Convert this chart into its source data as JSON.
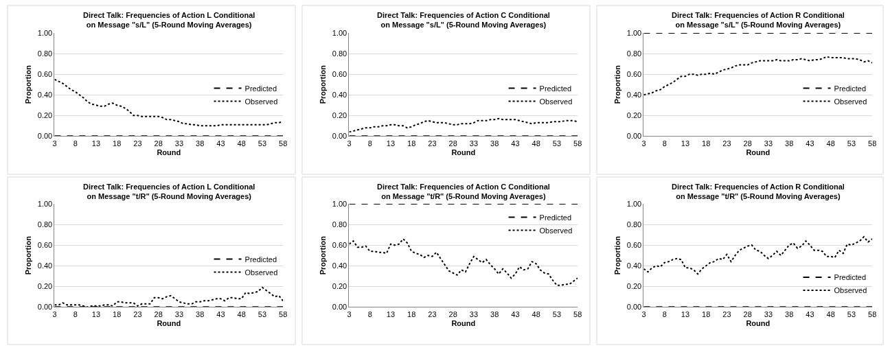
{
  "chart_data": [
    {
      "type": "line",
      "title": "Direct Talk: Frequencies of Action L Conditional on Message \"s/L\" (5-Round Moving Averages)",
      "xlabel": "Round",
      "ylabel": "Proportion",
      "x": [
        3,
        4,
        5,
        6,
        7,
        8,
        9,
        10,
        11,
        12,
        13,
        14,
        15,
        16,
        17,
        18,
        19,
        20,
        21,
        22,
        23,
        24,
        25,
        26,
        27,
        28,
        29,
        30,
        31,
        32,
        33,
        34,
        35,
        36,
        37,
        38,
        39,
        40,
        41,
        42,
        43,
        44,
        45,
        46,
        47,
        48,
        49,
        50,
        51,
        52,
        53,
        54,
        55,
        56,
        57,
        58
      ],
      "xlim": [
        3,
        58
      ],
      "xticks": [
        3,
        8,
        13,
        18,
        23,
        28,
        33,
        38,
        43,
        48,
        53,
        58
      ],
      "ylim": [
        0,
        1
      ],
      "yticks": [
        {
          "value": 0,
          "label": "0.00"
        },
        {
          "value": 0.2,
          "label": "0.20"
        },
        {
          "value": 0.4,
          "label": "0.40"
        },
        {
          "value": 0.6,
          "label": "0.60"
        },
        {
          "value": 0.8,
          "label": "0.80"
        },
        {
          "value": 1,
          "label": "1.00"
        }
      ],
      "grid": "y",
      "legend": "right",
      "marker": "none",
      "series": [
        {
          "name": "Predicted",
          "color": "#000000",
          "line_style": "dashed",
          "values": [
            0,
            0,
            0,
            0,
            0,
            0,
            0,
            0,
            0,
            0,
            0,
            0,
            0,
            0,
            0,
            0,
            0,
            0,
            0,
            0,
            0,
            0,
            0,
            0,
            0,
            0,
            0,
            0,
            0,
            0,
            0,
            0,
            0,
            0,
            0,
            0,
            0,
            0,
            0,
            0,
            0,
            0,
            0,
            0,
            0,
            0,
            0,
            0,
            0,
            0,
            0,
            0,
            0,
            0,
            0,
            0
          ]
        },
        {
          "name": "Observed",
          "color": "#000000",
          "line_style": "dotted",
          "values": [
            0.55,
            0.53,
            0.51,
            0.48,
            0.45,
            0.43,
            0.4,
            0.37,
            0.33,
            0.31,
            0.3,
            0.29,
            0.29,
            0.31,
            0.32,
            0.3,
            0.29,
            0.27,
            0.24,
            0.2,
            0.2,
            0.19,
            0.19,
            0.19,
            0.19,
            0.19,
            0.18,
            0.16,
            0.16,
            0.15,
            0.14,
            0.12,
            0.12,
            0.11,
            0.11,
            0.1,
            0.1,
            0.1,
            0.1,
            0.1,
            0.11,
            0.11,
            0.11,
            0.11,
            0.11,
            0.11,
            0.11,
            0.11,
            0.11,
            0.11,
            0.11,
            0.11,
            0.12,
            0.13,
            0.13,
            0.14
          ]
        }
      ]
    },
    {
      "type": "line",
      "title": "Direct Talk: Frequencies of Action C Conditional on Message \"s/L\" (5-Round Moving Averages)",
      "xlabel": "Round",
      "ylabel": "Proportion",
      "x": [
        3,
        4,
        5,
        6,
        7,
        8,
        9,
        10,
        11,
        12,
        13,
        14,
        15,
        16,
        17,
        18,
        19,
        20,
        21,
        22,
        23,
        24,
        25,
        26,
        27,
        28,
        29,
        30,
        31,
        32,
        33,
        34,
        35,
        36,
        37,
        38,
        39,
        40,
        41,
        42,
        43,
        44,
        45,
        46,
        47,
        48,
        49,
        50,
        51,
        52,
        53,
        54,
        55,
        56,
        57,
        58
      ],
      "xlim": [
        3,
        58
      ],
      "xticks": [
        3,
        8,
        13,
        18,
        23,
        28,
        33,
        38,
        43,
        48,
        53,
        58
      ],
      "ylim": [
        0,
        1
      ],
      "yticks": [
        {
          "value": 0,
          "label": "0.00"
        },
        {
          "value": 0.2,
          "label": "0.20"
        },
        {
          "value": 0.4,
          "label": "0.40"
        },
        {
          "value": 0.6,
          "label": "0.60"
        },
        {
          "value": 0.8,
          "label": "0.80"
        },
        {
          "value": 1,
          "label": "1.00"
        }
      ],
      "grid": "y",
      "legend": "right",
      "marker": "none",
      "series": [
        {
          "name": "Predicted",
          "color": "#000000",
          "line_style": "dashed",
          "values": [
            0,
            0,
            0,
            0,
            0,
            0,
            0,
            0,
            0,
            0,
            0,
            0,
            0,
            0,
            0,
            0,
            0,
            0,
            0,
            0,
            0,
            0,
            0,
            0,
            0,
            0,
            0,
            0,
            0,
            0,
            0,
            0,
            0,
            0,
            0,
            0,
            0,
            0,
            0,
            0,
            0,
            0,
            0,
            0,
            0,
            0,
            0,
            0,
            0,
            0,
            0,
            0,
            0,
            0,
            0,
            0
          ]
        },
        {
          "name": "Observed",
          "color": "#000000",
          "line_style": "dotted",
          "values": [
            0.04,
            0.05,
            0.06,
            0.07,
            0.08,
            0.08,
            0.09,
            0.09,
            0.1,
            0.1,
            0.11,
            0.11,
            0.1,
            0.1,
            0.08,
            0.09,
            0.11,
            0.12,
            0.14,
            0.15,
            0.14,
            0.13,
            0.13,
            0.13,
            0.12,
            0.11,
            0.11,
            0.12,
            0.12,
            0.12,
            0.13,
            0.15,
            0.15,
            0.15,
            0.16,
            0.16,
            0.17,
            0.16,
            0.16,
            0.16,
            0.16,
            0.15,
            0.14,
            0.13,
            0.12,
            0.13,
            0.13,
            0.13,
            0.13,
            0.14,
            0.14,
            0.14,
            0.15,
            0.15,
            0.15,
            0.14
          ]
        }
      ]
    },
    {
      "type": "line",
      "title": "Direct Talk: Frequencies of Action R Conditional on Message \"s/L\" (5-Round Moving Averages)",
      "xlabel": "Round",
      "ylabel": "Proportion",
      "x": [
        3,
        4,
        5,
        6,
        7,
        8,
        9,
        10,
        11,
        12,
        13,
        14,
        15,
        16,
        17,
        18,
        19,
        20,
        21,
        22,
        23,
        24,
        25,
        26,
        27,
        28,
        29,
        30,
        31,
        32,
        33,
        34,
        35,
        36,
        37,
        38,
        39,
        40,
        41,
        42,
        43,
        44,
        45,
        46,
        47,
        48,
        49,
        50,
        51,
        52,
        53,
        54,
        55,
        56,
        57,
        58
      ],
      "xlim": [
        3,
        58
      ],
      "xticks": [
        3,
        8,
        13,
        18,
        23,
        28,
        33,
        38,
        43,
        48,
        53,
        58
      ],
      "ylim": [
        0,
        1
      ],
      "yticks": [
        {
          "value": 0,
          "label": "0.00"
        },
        {
          "value": 0.2,
          "label": "0.20"
        },
        {
          "value": 0.4,
          "label": "0.40"
        },
        {
          "value": 0.6,
          "label": "0.60"
        },
        {
          "value": 0.8,
          "label": "0.80"
        },
        {
          "value": 1,
          "label": "1.00"
        }
      ],
      "grid": "y",
      "legend": "right",
      "marker": "none",
      "series": [
        {
          "name": "Predicted",
          "color": "#000000",
          "line_style": "dashed",
          "values": [
            1,
            1,
            1,
            1,
            1,
            1,
            1,
            1,
            1,
            1,
            1,
            1,
            1,
            1,
            1,
            1,
            1,
            1,
            1,
            1,
            1,
            1,
            1,
            1,
            1,
            1,
            1,
            1,
            1,
            1,
            1,
            1,
            1,
            1,
            1,
            1,
            1,
            1,
            1,
            1,
            1,
            1,
            1,
            1,
            1,
            1,
            1,
            1,
            1,
            1,
            1,
            1,
            1,
            1,
            1,
            1
          ]
        },
        {
          "name": "Observed",
          "color": "#000000",
          "line_style": "dotted",
          "values": [
            0.4,
            0.41,
            0.42,
            0.44,
            0.45,
            0.48,
            0.5,
            0.52,
            0.55,
            0.58,
            0.58,
            0.6,
            0.6,
            0.59,
            0.6,
            0.6,
            0.61,
            0.6,
            0.62,
            0.64,
            0.65,
            0.66,
            0.68,
            0.69,
            0.69,
            0.69,
            0.71,
            0.72,
            0.73,
            0.73,
            0.73,
            0.73,
            0.74,
            0.73,
            0.73,
            0.73,
            0.74,
            0.74,
            0.75,
            0.74,
            0.73,
            0.74,
            0.74,
            0.75,
            0.77,
            0.76,
            0.76,
            0.76,
            0.76,
            0.75,
            0.75,
            0.75,
            0.74,
            0.72,
            0.73,
            0.71
          ]
        }
      ]
    },
    {
      "type": "line",
      "title": "Direct Talk: Frequencies of Action L Conditional on Message \"t/R\" (5-Round Moving Averages)",
      "xlabel": "Round",
      "ylabel": "Proportion",
      "x": [
        3,
        4,
        5,
        6,
        7,
        8,
        9,
        10,
        11,
        12,
        13,
        14,
        15,
        16,
        17,
        18,
        19,
        20,
        21,
        22,
        23,
        24,
        25,
        26,
        27,
        28,
        29,
        30,
        31,
        32,
        33,
        34,
        35,
        36,
        37,
        38,
        39,
        40,
        41,
        42,
        43,
        44,
        45,
        46,
        47,
        48,
        49,
        50,
        51,
        52,
        53,
        54,
        55,
        56,
        57,
        58
      ],
      "xlim": [
        3,
        58
      ],
      "xticks": [
        3,
        8,
        13,
        18,
        23,
        28,
        33,
        38,
        43,
        48,
        53,
        58
      ],
      "ylim": [
        0,
        1
      ],
      "yticks": [
        {
          "value": 0,
          "label": "0.00"
        },
        {
          "value": 0.2,
          "label": "0.20"
        },
        {
          "value": 0.4,
          "label": "0.40"
        },
        {
          "value": 0.6,
          "label": "0.60"
        },
        {
          "value": 0.8,
          "label": "0.80"
        },
        {
          "value": 1,
          "label": "1.00"
        }
      ],
      "grid": "y",
      "legend": "right",
      "marker": "none",
      "series": [
        {
          "name": "Predicted",
          "color": "#000000",
          "line_style": "dashed",
          "values": [
            0,
            0,
            0,
            0,
            0,
            0,
            0,
            0,
            0,
            0,
            0,
            0,
            0,
            0,
            0,
            0,
            0,
            0,
            0,
            0,
            0,
            0,
            0,
            0,
            0,
            0,
            0,
            0,
            0,
            0,
            0,
            0,
            0,
            0,
            0,
            0,
            0,
            0,
            0,
            0,
            0,
            0,
            0,
            0,
            0,
            0,
            0,
            0,
            0,
            0,
            0,
            0,
            0,
            0,
            0,
            0
          ]
        },
        {
          "name": "Observed",
          "color": "#000000",
          "line_style": "dotted",
          "values": [
            0.02,
            0.02,
            0.04,
            0.02,
            0.02,
            0.02,
            0.02,
            0.01,
            0.0,
            0.01,
            0.01,
            0.01,
            0.02,
            0.02,
            0.01,
            0.05,
            0.05,
            0.04,
            0.04,
            0.04,
            0.01,
            0.03,
            0.03,
            0.03,
            0.09,
            0.09,
            0.08,
            0.1,
            0.11,
            0.08,
            0.05,
            0.04,
            0.03,
            0.03,
            0.05,
            0.05,
            0.06,
            0.06,
            0.07,
            0.08,
            0.08,
            0.06,
            0.09,
            0.09,
            0.08,
            0.08,
            0.14,
            0.13,
            0.14,
            0.15,
            0.19,
            0.16,
            0.13,
            0.1,
            0.11,
            0.06
          ]
        }
      ]
    },
    {
      "type": "line",
      "title": "Direct Talk: Frequencies of Action C Conditional on Message \"t/R\" (5-Round Moving Averages)",
      "xlabel": "Round",
      "ylabel": "Proportion",
      "x": [
        3,
        4,
        5,
        6,
        7,
        8,
        9,
        10,
        11,
        12,
        13,
        14,
        15,
        16,
        17,
        18,
        19,
        20,
        21,
        22,
        23,
        24,
        25,
        26,
        27,
        28,
        29,
        30,
        31,
        32,
        33,
        34,
        35,
        36,
        37,
        38,
        39,
        40,
        41,
        42,
        43,
        44,
        45,
        46,
        47,
        48,
        49,
        50,
        51,
        52,
        53,
        54,
        55,
        56,
        57,
        58
      ],
      "xlim": [
        3,
        58
      ],
      "xticks": [
        3,
        8,
        13,
        18,
        23,
        28,
        33,
        38,
        43,
        48,
        53,
        58
      ],
      "ylim": [
        0,
        1
      ],
      "yticks": [
        {
          "value": 0,
          "label": "0.00"
        },
        {
          "value": 0.2,
          "label": "0.20"
        },
        {
          "value": 0.4,
          "label": "0.40"
        },
        {
          "value": 0.6,
          "label": "0.60"
        },
        {
          "value": 0.8,
          "label": "0.80"
        },
        {
          "value": 1,
          "label": "1.00"
        }
      ],
      "grid": "y",
      "legend": "top right",
      "marker": "none",
      "series": [
        {
          "name": "Predicted",
          "color": "#000000",
          "line_style": "dashed",
          "values": [
            1,
            1,
            1,
            1,
            1,
            1,
            1,
            1,
            1,
            1,
            1,
            1,
            1,
            1,
            1,
            1,
            1,
            1,
            1,
            1,
            1,
            1,
            1,
            1,
            1,
            1,
            1,
            1,
            1,
            1,
            1,
            1,
            1,
            1,
            1,
            1,
            1,
            1,
            1,
            1,
            1,
            1,
            1,
            1,
            1,
            1,
            1,
            1,
            1,
            1,
            1,
            1,
            1,
            1,
            1,
            1
          ]
        },
        {
          "name": "Observed",
          "color": "#000000",
          "line_style": "dotted",
          "values": [
            0.61,
            0.64,
            0.58,
            0.58,
            0.59,
            0.54,
            0.54,
            0.53,
            0.53,
            0.52,
            0.61,
            0.6,
            0.61,
            0.66,
            0.62,
            0.54,
            0.52,
            0.51,
            0.48,
            0.5,
            0.49,
            0.53,
            0.47,
            0.41,
            0.35,
            0.33,
            0.31,
            0.36,
            0.34,
            0.42,
            0.49,
            0.46,
            0.43,
            0.46,
            0.41,
            0.37,
            0.32,
            0.37,
            0.33,
            0.28,
            0.32,
            0.39,
            0.36,
            0.37,
            0.44,
            0.42,
            0.36,
            0.33,
            0.32,
            0.26,
            0.21,
            0.21,
            0.22,
            0.22,
            0.25,
            0.28
          ]
        }
      ]
    },
    {
      "type": "line",
      "title": "Direct Talk: Frequencies of Action R Conditional on Message \"t/R\" (5-Round Moving Averages)",
      "xlabel": "Round",
      "ylabel": "Proportion",
      "x": [
        3,
        4,
        5,
        6,
        7,
        8,
        9,
        10,
        11,
        12,
        13,
        14,
        15,
        16,
        17,
        18,
        19,
        20,
        21,
        22,
        23,
        24,
        25,
        26,
        27,
        28,
        29,
        30,
        31,
        32,
        33,
        34,
        35,
        36,
        37,
        38,
        39,
        40,
        41,
        42,
        43,
        44,
        45,
        46,
        47,
        48,
        49,
        50,
        51,
        52,
        53,
        54,
        55,
        56,
        57,
        58
      ],
      "xlim": [
        3,
        58
      ],
      "xticks": [
        3,
        8,
        13,
        18,
        23,
        28,
        33,
        38,
        43,
        48,
        53,
        58
      ],
      "ylim": [
        0,
        1
      ],
      "yticks": [
        {
          "value": 0,
          "label": "0.00"
        },
        {
          "value": 0.2,
          "label": "0.20"
        },
        {
          "value": 0.4,
          "label": "0.40"
        },
        {
          "value": 0.6,
          "label": "0.60"
        },
        {
          "value": 0.8,
          "label": "0.80"
        },
        {
          "value": 1,
          "label": "1.00"
        }
      ],
      "grid": "y",
      "legend": "bottom right",
      "marker": "none",
      "series": [
        {
          "name": "Predicted",
          "color": "#000000",
          "line_style": "dashed",
          "values": [
            0,
            0,
            0,
            0,
            0,
            0,
            0,
            0,
            0,
            0,
            0,
            0,
            0,
            0,
            0,
            0,
            0,
            0,
            0,
            0,
            0,
            0,
            0,
            0,
            0,
            0,
            0,
            0,
            0,
            0,
            0,
            0,
            0,
            0,
            0,
            0,
            0,
            0,
            0,
            0,
            0,
            0,
            0,
            0,
            0,
            0,
            0,
            0,
            0,
            0,
            0,
            0,
            0,
            0,
            0,
            0
          ]
        },
        {
          "name": "Observed",
          "color": "#000000",
          "line_style": "dotted",
          "values": [
            0.37,
            0.34,
            0.38,
            0.4,
            0.39,
            0.43,
            0.44,
            0.46,
            0.47,
            0.46,
            0.38,
            0.38,
            0.36,
            0.32,
            0.37,
            0.4,
            0.43,
            0.44,
            0.47,
            0.46,
            0.51,
            0.44,
            0.5,
            0.55,
            0.57,
            0.59,
            0.6,
            0.55,
            0.54,
            0.5,
            0.47,
            0.5,
            0.54,
            0.5,
            0.55,
            0.6,
            0.62,
            0.57,
            0.59,
            0.64,
            0.6,
            0.55,
            0.55,
            0.54,
            0.49,
            0.49,
            0.48,
            0.55,
            0.52,
            0.61,
            0.6,
            0.62,
            0.64,
            0.68,
            0.63,
            0.66
          ]
        }
      ]
    }
  ]
}
